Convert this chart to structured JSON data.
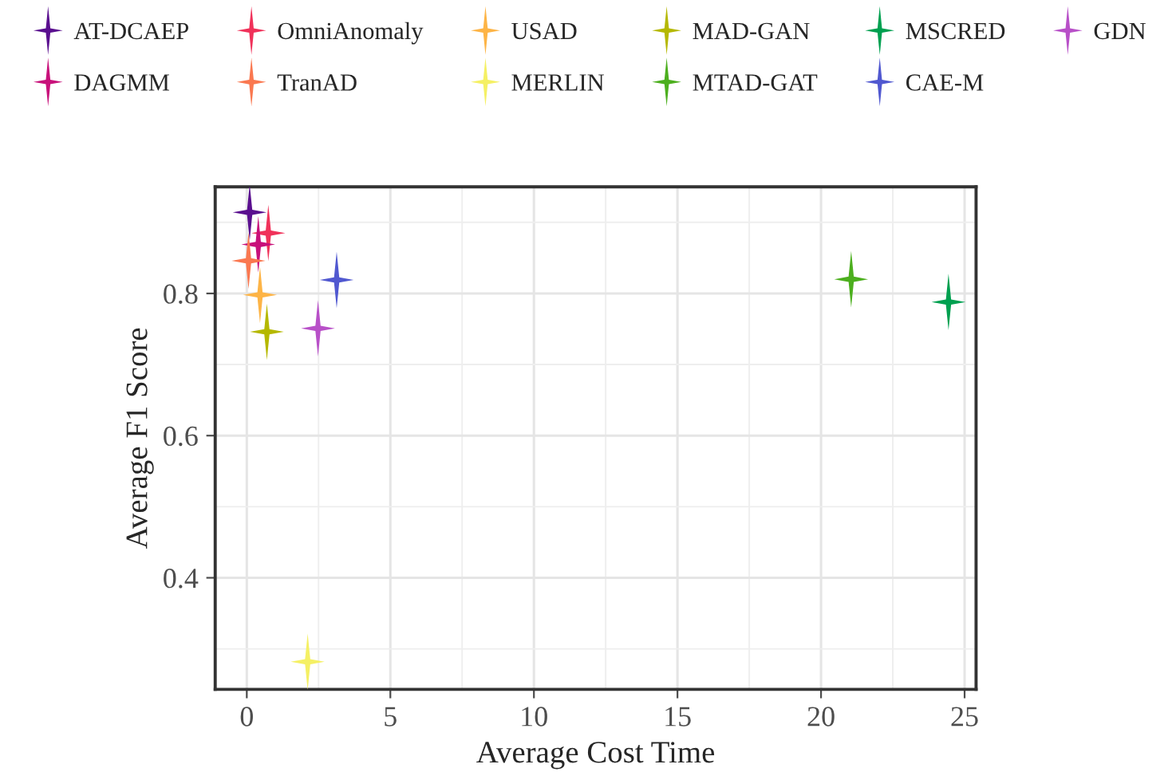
{
  "chart_data": {
    "type": "scatter",
    "xlabel": "Average Cost Time",
    "ylabel": "Average F1 Score",
    "xlim": [
      -1.1,
      25.4
    ],
    "ylim": [
      0.243,
      0.95
    ],
    "xticks": [
      0,
      5,
      10,
      15,
      20,
      25
    ],
    "yticks": [
      0.4,
      0.6,
      0.8
    ],
    "grid": true,
    "legend": "top",
    "marker": "star",
    "series": [
      {
        "name": "AT-DCAEP",
        "color": "#5a0f8f",
        "x": [
          0.1
        ],
        "values": [
          0.914
        ]
      },
      {
        "name": "OmniAnomaly",
        "color": "#f0325a",
        "x": [
          0.75
        ],
        "values": [
          0.885
        ]
      },
      {
        "name": "USAD",
        "color": "#fdb446",
        "x": [
          0.46
        ],
        "values": [
          0.798
        ]
      },
      {
        "name": "MAD-GAN",
        "color": "#b5b800",
        "x": [
          0.7
        ],
        "values": [
          0.746
        ]
      },
      {
        "name": "MSCRED",
        "color": "#00a050",
        "x": [
          24.44
        ],
        "values": [
          0.788
        ]
      },
      {
        "name": "GDN",
        "color": "#b850c8",
        "x": [
          2.48
        ],
        "values": [
          0.751
        ]
      },
      {
        "name": "DAGMM",
        "color": "#c8107a",
        "x": [
          0.4
        ],
        "values": [
          0.869
        ]
      },
      {
        "name": "TranAD",
        "color": "#fa7850",
        "x": [
          0.06
        ],
        "values": [
          0.846
        ]
      },
      {
        "name": "MERLIN",
        "color": "#f5f064",
        "x": [
          2.12
        ],
        "values": [
          0.282
        ]
      },
      {
        "name": "MTAD-GAT",
        "color": "#4caf1e",
        "x": [
          21.05
        ],
        "values": [
          0.82
        ]
      },
      {
        "name": "CAE-M",
        "color": "#5058d0",
        "x": [
          3.13
        ],
        "values": [
          0.819
        ]
      }
    ]
  }
}
